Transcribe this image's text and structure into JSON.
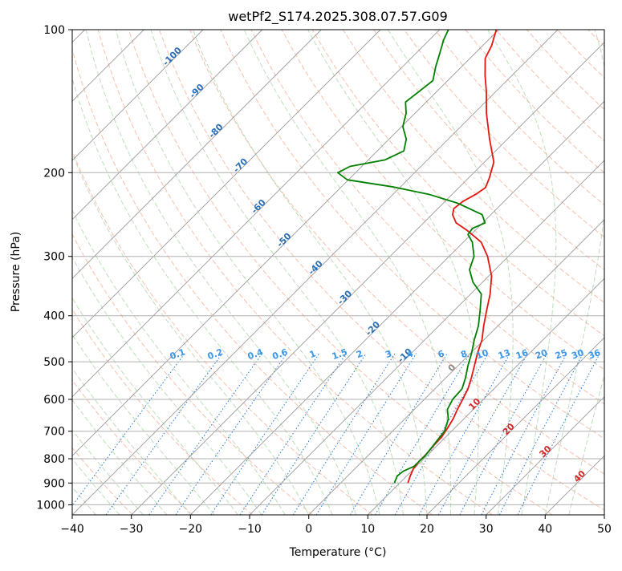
{
  "chart_data": {
    "type": "line",
    "title": "wetPf2_S174.2025.308.07.57.G09",
    "xlabel": "Temperature (°C)",
    "ylabel": "Pressure (hPa)",
    "xlim": [
      -40,
      50
    ],
    "ylim": [
      1050,
      100
    ],
    "y_scale": "log",
    "skew": "skew-T log-p diagram",
    "x_ticks": [
      -40,
      -30,
      -20,
      -10,
      0,
      10,
      20,
      30,
      40,
      50
    ],
    "x_tick_labels": [
      "−40",
      "−30",
      "−20",
      "−10",
      "0",
      "10",
      "20",
      "30",
      "40",
      "50"
    ],
    "y_ticks": [
      100,
      200,
      300,
      400,
      500,
      600,
      700,
      800,
      900,
      1000
    ],
    "y_tick_labels": [
      "100",
      "200",
      "300",
      "400",
      "500",
      "600",
      "700",
      "800",
      "900",
      "1000"
    ],
    "series": [
      {
        "name": "Temperature",
        "color": "#e8140f",
        "pressure": [
          900,
          870,
          840,
          810,
          780,
          750,
          720,
          690,
          660,
          630,
          600,
          570,
          540,
          510,
          480,
          450,
          420,
          390,
          360,
          330,
          300,
          280,
          265,
          255,
          245,
          238,
          230,
          222,
          215,
          205,
          190,
          170,
          150,
          135,
          125,
          115,
          108,
          100
        ],
        "temp": [
          11.4,
          10.6,
          9.9,
          9.6,
          9.6,
          9.4,
          9.3,
          8.8,
          8.2,
          7.3,
          6.5,
          5.6,
          4.3,
          2.8,
          1.2,
          -0.3,
          -2.4,
          -4.5,
          -6.7,
          -9.5,
          -13.5,
          -17.0,
          -21.2,
          -24.5,
          -26.5,
          -27.3,
          -27.0,
          -26.0,
          -25.5,
          -26.5,
          -28.4,
          -33.0,
          -37.9,
          -41.6,
          -44.5,
          -47.4,
          -48.5,
          -50.4
        ]
      },
      {
        "name": "Dewpoint",
        "color": "#007f00",
        "pressure": [
          900,
          870,
          850,
          830,
          810,
          790,
          770,
          740,
          700,
          660,
          630,
          600,
          570,
          540,
          510,
          480,
          450,
          420,
          390,
          360,
          340,
          320,
          300,
          280,
          270,
          262,
          255,
          245,
          232,
          222,
          214,
          207,
          200,
          194,
          188,
          180,
          170,
          160,
          150,
          142,
          135,
          128,
          120,
          112,
          105,
          100
        ],
        "dewp": [
          9.1,
          8.4,
          8.6,
          9.6,
          9.6,
          9.7,
          9.5,
          9.2,
          8.8,
          7.4,
          5.6,
          4.8,
          4.6,
          3.3,
          1.7,
          0.2,
          -1.6,
          -3.3,
          -5.6,
          -8.2,
          -11.6,
          -14.3,
          -15.8,
          -18.5,
          -20.5,
          -20.8,
          -19.6,
          -21.5,
          -27.5,
          -34.0,
          -41.5,
          -50.2,
          -53.0,
          -52.0,
          -47.2,
          -45.5,
          -47.1,
          -49.8,
          -51.5,
          -53.5,
          -53.0,
          -52.5,
          -54.3,
          -56.0,
          -57.6,
          -58.5
        ]
      }
    ],
    "dry_adiabat_labels": [],
    "moist_adiabat_labels": [],
    "mixing_ratio_labels": [
      {
        "text": "0.1",
        "w": 0.1
      },
      {
        "text": "0.2",
        "w": 0.2
      },
      {
        "text": "0.4",
        "w": 0.4
      },
      {
        "text": "0.6",
        "w": 0.6
      },
      {
        "text": "1",
        "w": 1
      },
      {
        "text": "1.5",
        "w": 1.5
      },
      {
        "text": "2",
        "w": 2
      },
      {
        "text": "3",
        "w": 3
      },
      {
        "text": "4",
        "w": 4
      },
      {
        "text": "6",
        "w": 6
      },
      {
        "text": "8",
        "w": 8
      },
      {
        "text": "10",
        "w": 10
      },
      {
        "text": "13",
        "w": 13
      },
      {
        "text": "16",
        "w": 16
      },
      {
        "text": "20",
        "w": 20
      },
      {
        "text": "25",
        "w": 25
      },
      {
        "text": "30",
        "w": 30
      },
      {
        "text": "36",
        "w": 36
      }
    ],
    "isotherm_labels": [
      {
        "text": "-100",
        "t": -100,
        "p": 115
      },
      {
        "text": "-90",
        "t": -90,
        "p": 136
      },
      {
        "text": "-80",
        "t": -80,
        "p": 165
      },
      {
        "text": "-70",
        "t": -70,
        "p": 195
      },
      {
        "text": "-60",
        "t": -60,
        "p": 238
      },
      {
        "text": "-50",
        "t": -50,
        "p": 280
      },
      {
        "text": "-40",
        "t": -40,
        "p": 320
      },
      {
        "text": "-30",
        "t": -30,
        "p": 370
      },
      {
        "text": "-20",
        "t": -20,
        "p": 430
      },
      {
        "text": "-10",
        "t": -10,
        "p": 490
      }
    ],
    "wetbulb_labels": [
      {
        "text": "0",
        "t": 0,
        "p": 520,
        "color": "#888888"
      },
      {
        "text": "10",
        "t": 10,
        "p": 620,
        "color": "#d62728"
      },
      {
        "text": "20",
        "t": 20,
        "p": 700,
        "color": "#d62728"
      },
      {
        "text": "30",
        "t": 30,
        "p": 780,
        "color": "#d62728"
      },
      {
        "text": "40",
        "t": 40,
        "p": 880,
        "color": "#d62728"
      }
    ]
  }
}
